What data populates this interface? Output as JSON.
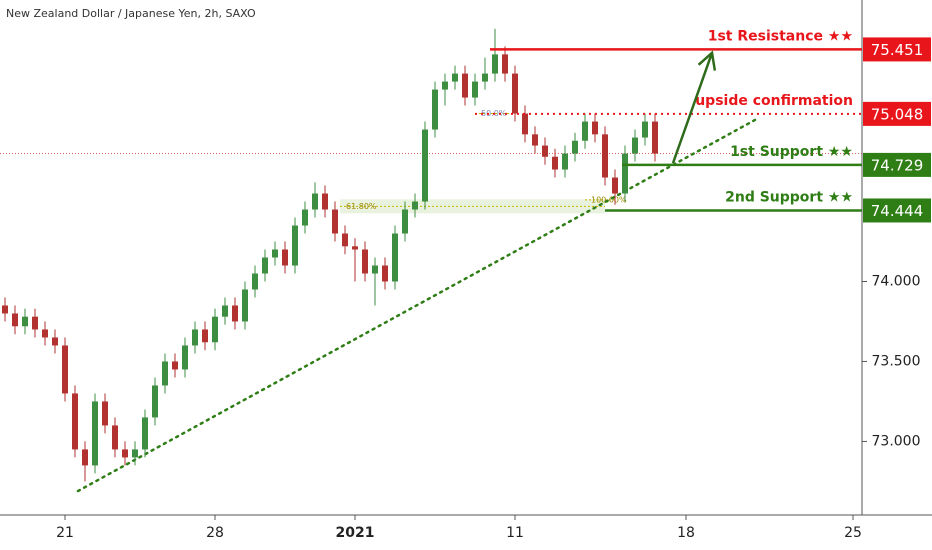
{
  "chart_data": {
    "type": "candlestick",
    "title": "New Zealand Dollar / Japanese Yen, 2h, SAXO",
    "xlim": [
      -0.5,
      85.7
    ],
    "ylim": [
      72.54,
      75.76
    ],
    "xticks": [
      {
        "value": 6,
        "label": "21"
      },
      {
        "value": 21,
        "label": "28"
      },
      {
        "value": 35,
        "label": "2021"
      },
      {
        "value": 51,
        "label": "11"
      },
      {
        "value": 68.1,
        "label": "18"
      },
      {
        "value": 84.8,
        "label": "25"
      }
    ],
    "yticks": [
      {
        "value": 73,
        "label": "73.000"
      },
      {
        "value": 73.5,
        "label": "73.500"
      },
      {
        "value": 74,
        "label": "74.000"
      }
    ],
    "up_color": "#3e8e41",
    "down_color": "#b2322f",
    "open": [
      73.85,
      73.8,
      73.72,
      73.78,
      73.7,
      73.65,
      73.6,
      73.3,
      72.95,
      72.85,
      73.25,
      73.1,
      72.95,
      72.9,
      72.95,
      73.15,
      73.35,
      73.5,
      73.45,
      73.6,
      73.7,
      73.62,
      73.78,
      73.85,
      73.75,
      73.95,
      74.05,
      74.15,
      74.2,
      74.1,
      74.35,
      74.45,
      74.55,
      74.45,
      74.3,
      74.22,
      74.2,
      74.05,
      74.1,
      74.0,
      74.3,
      74.45,
      74.5,
      74.95,
      75.2,
      75.25,
      75.3,
      75.15,
      75.25,
      75.3,
      75.42,
      75.3,
      75.05,
      74.92,
      74.85,
      74.78,
      74.7,
      74.8,
      74.88,
      75.0,
      74.92,
      74.65,
      74.55,
      74.8,
      74.9,
      75.0
    ],
    "high": [
      73.9,
      73.85,
      73.83,
      73.83,
      73.75,
      73.7,
      73.65,
      73.35,
      73.0,
      73.3,
      73.3,
      73.15,
      73.0,
      73.0,
      73.2,
      73.4,
      73.55,
      73.55,
      73.65,
      73.75,
      73.75,
      73.83,
      73.9,
      73.9,
      74.0,
      74.1,
      74.2,
      74.25,
      74.25,
      74.4,
      74.5,
      74.62,
      74.6,
      74.5,
      74.35,
      74.27,
      74.25,
      74.15,
      74.15,
      74.35,
      74.5,
      74.55,
      75.0,
      75.25,
      75.3,
      75.35,
      75.35,
      75.3,
      75.4,
      75.58,
      75.47,
      75.35,
      75.1,
      74.97,
      74.9,
      74.83,
      74.85,
      74.93,
      75.05,
      75.05,
      74.97,
      74.7,
      74.85,
      74.95,
      75.05,
      75.05
    ],
    "low": [
      73.75,
      73.67,
      73.67,
      73.65,
      73.6,
      73.55,
      73.25,
      72.9,
      72.75,
      72.8,
      73.05,
      72.9,
      72.85,
      72.85,
      72.9,
      73.1,
      73.3,
      73.4,
      73.4,
      73.55,
      73.57,
      73.57,
      73.73,
      73.7,
      73.7,
      73.9,
      74.0,
      74.1,
      74.05,
      74.05,
      74.3,
      74.4,
      74.4,
      74.25,
      74.17,
      74.0,
      74.0,
      73.85,
      73.95,
      73.95,
      74.25,
      74.4,
      74.45,
      74.9,
      75.1,
      75.2,
      75.1,
      75.1,
      75.2,
      75.25,
      75.25,
      75.0,
      74.87,
      74.8,
      74.73,
      74.65,
      74.65,
      74.75,
      74.83,
      74.87,
      74.6,
      74.48,
      74.5,
      74.75,
      74.85,
      74.75
    ],
    "close": [
      73.8,
      73.72,
      73.78,
      73.7,
      73.65,
      73.6,
      73.3,
      72.95,
      72.85,
      73.25,
      73.1,
      72.95,
      72.9,
      72.95,
      73.15,
      73.35,
      73.5,
      73.45,
      73.6,
      73.7,
      73.62,
      73.78,
      73.85,
      73.75,
      73.95,
      74.05,
      74.15,
      74.2,
      74.1,
      74.35,
      74.45,
      74.55,
      74.45,
      74.3,
      74.22,
      74.2,
      74.05,
      74.1,
      74.0,
      74.3,
      74.45,
      74.5,
      74.95,
      75.2,
      75.25,
      75.3,
      75.15,
      75.25,
      75.3,
      75.42,
      75.3,
      75.05,
      74.92,
      74.85,
      74.78,
      74.7,
      74.8,
      74.88,
      75.0,
      74.92,
      74.65,
      74.55,
      74.8,
      74.9,
      75.0,
      74.8
    ],
    "levels": [
      {
        "name": "1st Resistance ★★",
        "value": 75.451,
        "start": 48.5,
        "color": "#e8161b",
        "style": "solid"
      },
      {
        "name": "upside confirmation",
        "value": 75.048,
        "start": 47,
        "color": "#e8161b",
        "style": "dotted"
      },
      {
        "name": "1st Support ★★",
        "value": 74.729,
        "start": 61.7,
        "color": "#2e7d15",
        "style": "solid"
      },
      {
        "name": "2nd Support ★★",
        "value": 74.444,
        "start": 60,
        "color": "#2e7d15",
        "style": "solid"
      }
    ],
    "fib": [
      {
        "label": "50.0%",
        "value": 75.05,
        "x": [
          47,
          51
        ]
      },
      {
        "label": "61.80%",
        "value": 74.47,
        "x": [
          33.5,
          60
        ]
      },
      {
        "label": "100.00%",
        "value": 74.51,
        "x": [
          58,
          61
        ]
      }
    ],
    "trendline": {
      "x": [
        7.3,
        75
      ],
      "values": [
        72.69,
        75.01
      ],
      "color": "#2e7d15"
    },
    "arrow": {
      "x": [
        66.8,
        70.7
      ],
      "values": [
        74.74,
        75.43
      ],
      "color": "#2e6b1a"
    }
  }
}
